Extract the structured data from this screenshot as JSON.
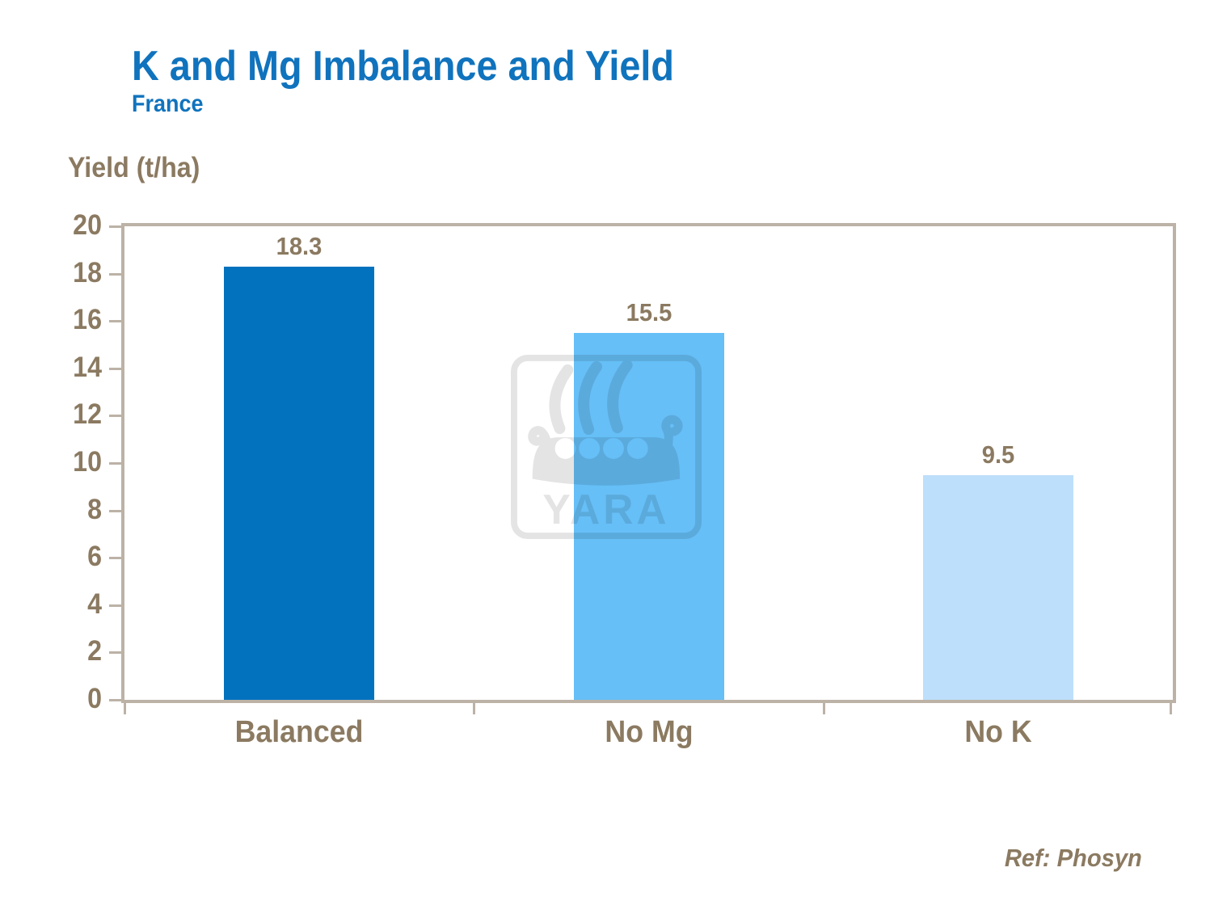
{
  "header": {
    "title": "K and Mg Imbalance and Yield",
    "subtitle": "France"
  },
  "footer": {
    "reference": "Ref: Phosyn"
  },
  "watermark": {
    "text": "YARA"
  },
  "colors": {
    "title_blue": "#1073BD",
    "label_brown": "#8B7A61",
    "axis_tan": "#BCB2A6",
    "background": "#FFFFFF"
  },
  "chart_data": {
    "type": "bar",
    "title": "K and Mg Imbalance and Yield",
    "subtitle": "France",
    "ylabel": "Yield (t/ha)",
    "xlabel": "",
    "categories": [
      "Balanced",
      "No Mg",
      "No K"
    ],
    "values": [
      18.3,
      15.5,
      9.5
    ],
    "value_labels": [
      "18.3",
      "15.5",
      "9.5"
    ],
    "bar_colors": [
      "#0272BE",
      "#66BFF7",
      "#BDDFFB"
    ],
    "ylim": [
      0,
      20
    ],
    "ytick_step": 2,
    "ytick_labels": [
      "0",
      "2",
      "4",
      "6",
      "8",
      "10",
      "12",
      "14",
      "16",
      "18",
      "20"
    ],
    "grid": false,
    "legend": "none",
    "annotations": [
      "Ref: Phosyn"
    ]
  }
}
